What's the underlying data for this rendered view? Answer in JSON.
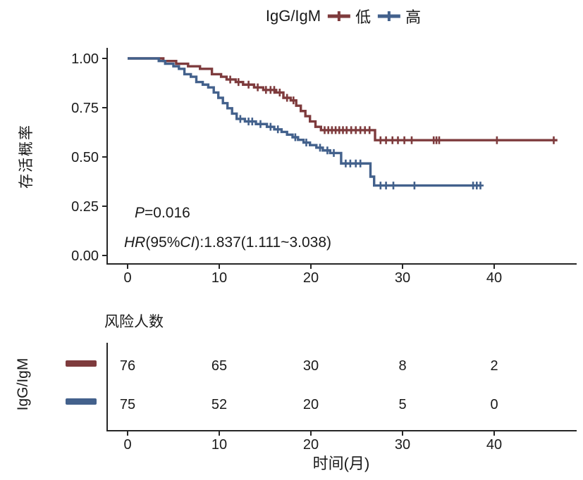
{
  "legend": {
    "title": "IgG/IgM",
    "items": [
      {
        "label": "低",
        "color": "#7e3b3d"
      },
      {
        "label": "高",
        "color": "#43618c"
      }
    ]
  },
  "colors": {
    "low": "#7e3b3d",
    "high": "#43618c",
    "axis": "#262626",
    "text": "#1a1a1a"
  },
  "annotations": {
    "p": {
      "part1": "P",
      "part2": "=0.016"
    },
    "hr": {
      "part1": "HR",
      "part2": "(95%",
      "part3": "CI",
      "part4": "):1.837(1.111~3.038)"
    }
  },
  "chart_data": {
    "type": "line",
    "subtype": "kaplan-meier-step-curves",
    "title": "",
    "xlabel": "时间(月)",
    "ylabel": "存活概率",
    "xlim": [
      0,
      48.8
    ],
    "ylim": [
      0,
      1
    ],
    "xticks": [
      0,
      10,
      20,
      30,
      40
    ],
    "yticks": [
      {
        "v": 1.0,
        "label": "1.00"
      },
      {
        "v": 0.75,
        "label": "0.75"
      },
      {
        "v": 0.5,
        "label": "0.50"
      },
      {
        "v": 0.25,
        "label": "0.25"
      },
      {
        "v": 0.0,
        "label": "0.00"
      }
    ],
    "legend_position": "top",
    "grid": false,
    "series": [
      {
        "name": "低",
        "color": "#7e3b3d",
        "start": [
          0,
          1.0
        ],
        "end_time": 46.9,
        "steps": [
          [
            3.9,
            0.987
          ],
          [
            5.3,
            0.973
          ],
          [
            6.6,
            0.96
          ],
          [
            7.9,
            0.947
          ],
          [
            9.2,
            0.92
          ],
          [
            10.2,
            0.907
          ],
          [
            10.8,
            0.893
          ],
          [
            11.8,
            0.88
          ],
          [
            12.6,
            0.867
          ],
          [
            13.8,
            0.853
          ],
          [
            14.8,
            0.84
          ],
          [
            16.2,
            0.827
          ],
          [
            17.0,
            0.8
          ],
          [
            17.8,
            0.787
          ],
          [
            18.4,
            0.76
          ],
          [
            18.9,
            0.733
          ],
          [
            19.4,
            0.707
          ],
          [
            19.9,
            0.68
          ],
          [
            20.5,
            0.653
          ],
          [
            21.1,
            0.636
          ],
          [
            27.0,
            0.585
          ]
        ],
        "censors": [
          [
            11.2,
            0.893
          ],
          [
            12.1,
            0.88
          ],
          [
            13.2,
            0.867
          ],
          [
            14.2,
            0.853
          ],
          [
            15.1,
            0.84
          ],
          [
            15.6,
            0.84
          ],
          [
            16.0,
            0.84
          ],
          [
            16.6,
            0.827
          ],
          [
            17.4,
            0.8
          ],
          [
            18.1,
            0.787
          ],
          [
            21.5,
            0.636
          ],
          [
            21.9,
            0.636
          ],
          [
            22.3,
            0.636
          ],
          [
            22.7,
            0.636
          ],
          [
            23.1,
            0.636
          ],
          [
            23.5,
            0.636
          ],
          [
            23.9,
            0.636
          ],
          [
            24.4,
            0.636
          ],
          [
            24.9,
            0.636
          ],
          [
            25.4,
            0.636
          ],
          [
            25.9,
            0.636
          ],
          [
            26.4,
            0.636
          ],
          [
            27.6,
            0.585
          ],
          [
            28.2,
            0.585
          ],
          [
            28.9,
            0.585
          ],
          [
            29.5,
            0.585
          ],
          [
            30.2,
            0.585
          ],
          [
            31.0,
            0.585
          ],
          [
            33.4,
            0.585
          ],
          [
            33.7,
            0.585
          ],
          [
            34.0,
            0.585
          ],
          [
            40.3,
            0.585
          ],
          [
            46.5,
            0.585
          ]
        ]
      },
      {
        "name": "高",
        "color": "#43618c",
        "start": [
          0,
          1.0
        ],
        "end_time": 38.6,
        "steps": [
          [
            3.4,
            0.987
          ],
          [
            4.1,
            0.973
          ],
          [
            5.0,
            0.96
          ],
          [
            5.6,
            0.947
          ],
          [
            6.2,
            0.92
          ],
          [
            6.9,
            0.907
          ],
          [
            7.5,
            0.88
          ],
          [
            8.2,
            0.867
          ],
          [
            8.8,
            0.853
          ],
          [
            9.4,
            0.827
          ],
          [
            9.9,
            0.8
          ],
          [
            10.4,
            0.773
          ],
          [
            10.9,
            0.747
          ],
          [
            11.4,
            0.72
          ],
          [
            11.9,
            0.693
          ],
          [
            12.8,
            0.68
          ],
          [
            14.0,
            0.667
          ],
          [
            15.2,
            0.653
          ],
          [
            16.0,
            0.64
          ],
          [
            16.8,
            0.627
          ],
          [
            17.4,
            0.613
          ],
          [
            18.0,
            0.6
          ],
          [
            18.6,
            0.587
          ],
          [
            19.2,
            0.573
          ],
          [
            19.9,
            0.56
          ],
          [
            20.6,
            0.547
          ],
          [
            21.3,
            0.533
          ],
          [
            22.1,
            0.52
          ],
          [
            23.3,
            0.467
          ],
          [
            26.5,
            0.4
          ],
          [
            26.9,
            0.355
          ]
        ],
        "censors": [
          [
            12.3,
            0.693
          ],
          [
            13.2,
            0.68
          ],
          [
            13.6,
            0.68
          ],
          [
            14.5,
            0.667
          ],
          [
            15.6,
            0.653
          ],
          [
            16.4,
            0.64
          ],
          [
            18.3,
            0.6
          ],
          [
            19.5,
            0.573
          ],
          [
            21.0,
            0.547
          ],
          [
            21.8,
            0.533
          ],
          [
            22.5,
            0.52
          ],
          [
            23.8,
            0.467
          ],
          [
            24.3,
            0.467
          ],
          [
            24.9,
            0.467
          ],
          [
            25.4,
            0.467
          ],
          [
            27.6,
            0.355
          ],
          [
            28.2,
            0.355
          ],
          [
            29.0,
            0.355
          ],
          [
            31.3,
            0.355
          ],
          [
            37.7,
            0.355
          ],
          [
            38.1,
            0.355
          ],
          [
            38.5,
            0.355
          ]
        ]
      }
    ],
    "p_value_text": "P=0.016",
    "hr_text": "HR(95%CI):1.837(1.111~3.038)"
  },
  "risk_table": {
    "title": "风险人数",
    "group_label": "IgG/IgM",
    "time_ticks": [
      0,
      10,
      20,
      30,
      40
    ],
    "rows": [
      {
        "name": "低",
        "color": "#7e3b3d",
        "counts": [
          "76",
          "65",
          "30",
          "8",
          "2"
        ]
      },
      {
        "name": "高",
        "color": "#43618c",
        "counts": [
          "75",
          "52",
          "20",
          "5",
          "0"
        ]
      }
    ],
    "xlabel": "时间(月)"
  }
}
